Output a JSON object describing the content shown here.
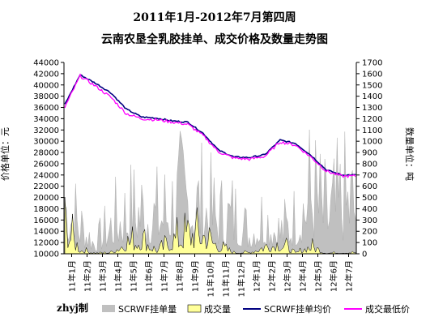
{
  "chart_data": {
    "type": "combo",
    "title": "2011年1月-2012年7月第四周",
    "subtitle": "云南农垦全乳胶挂单、成交价格及数量走势图",
    "ylabel_left": "价格单位：元",
    "ylabel_right": "数量单位：吨",
    "ylim_left": [
      10000,
      44000
    ],
    "yticks_left": [
      "44000",
      "42000",
      "40000",
      "38000",
      "36000",
      "34000",
      "32000",
      "30000",
      "28000",
      "26000",
      "24000",
      "22000",
      "20000",
      "18000",
      "16000",
      "14000",
      "12000",
      "10000"
    ],
    "ylim_right": [
      0,
      1700
    ],
    "yticks_right": [
      "1700",
      "1600",
      "1500",
      "1400",
      "1300",
      "1200",
      "1100",
      "1000",
      "900",
      "800",
      "700",
      "600",
      "500",
      "400",
      "300",
      "200",
      "100",
      "0"
    ],
    "x_categories": [
      "11年1月",
      "11年2月",
      "11年3月",
      "11年4月",
      "11年5月",
      "11年6月",
      "11年7月",
      "11年8月",
      "11年9月",
      "11年10月",
      "11年11月",
      "11年12月",
      "12年1月",
      "12年2月",
      "12年3月",
      "12年4月",
      "12年5月",
      "12年6月",
      "12年7月"
    ],
    "legend_position": "bottom",
    "grid": false,
    "watermark": "zhyj制",
    "series": [
      {
        "name": "SCRWF挂单量",
        "axis": "right",
        "kind": "area",
        "color": "#c0c0c0",
        "monthly_values": [
          760,
          420,
          140,
          420,
          580,
          660,
          560,
          720,
          820,
          700,
          520,
          560,
          300,
          560,
          320,
          480,
          920,
          560,
          760
        ]
      },
      {
        "name": "成交量",
        "axis": "right",
        "kind": "area",
        "color": "#ffff99",
        "monthly_values": [
          420,
          60,
          10,
          20,
          170,
          230,
          40,
          200,
          300,
          290,
          110,
          20,
          20,
          110,
          160,
          10,
          110,
          10,
          20
        ]
      },
      {
        "name": "SCRWF挂单均价",
        "axis": "left",
        "kind": "line",
        "color": "#000080",
        "monthly_values": [
          36500,
          41800,
          40300,
          38600,
          35700,
          34300,
          34100,
          33600,
          33400,
          31400,
          28400,
          27200,
          27100,
          27600,
          30200,
          29600,
          27500,
          24900,
          24000
        ]
      },
      {
        "name": "成交最低价",
        "axis": "left",
        "kind": "line",
        "color": "#ff00ff",
        "monthly_values": [
          36000,
          41600,
          39800,
          37800,
          34900,
          34000,
          33800,
          33400,
          33000,
          31000,
          28100,
          27000,
          26800,
          27300,
          29900,
          29300,
          27200,
          24700,
          23800
        ]
      }
    ]
  }
}
